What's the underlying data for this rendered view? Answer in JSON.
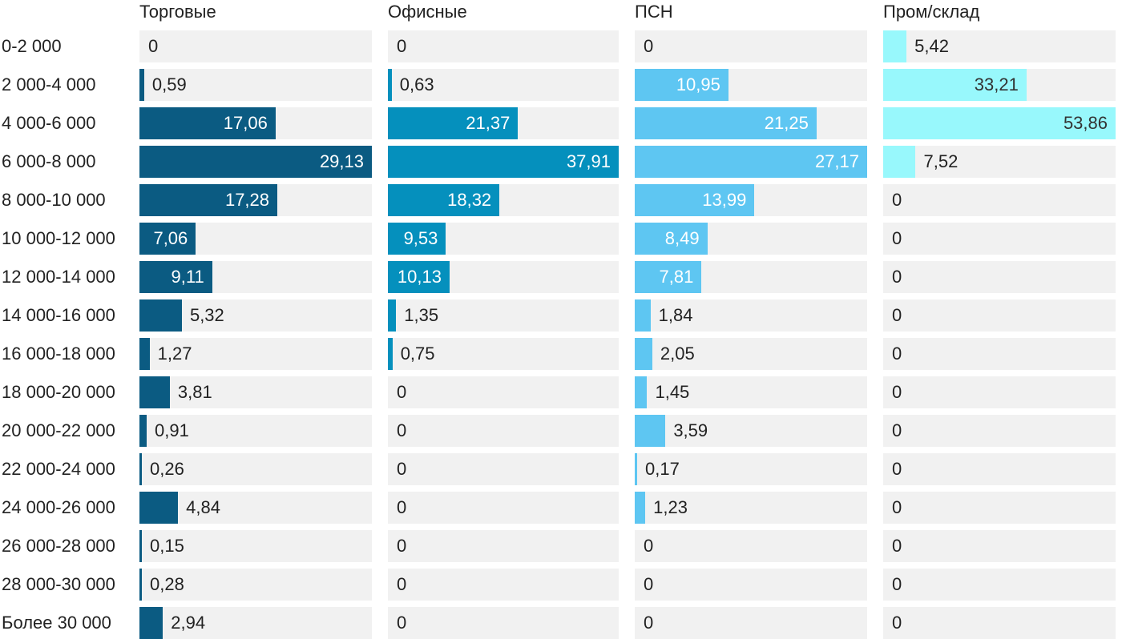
{
  "chart_data": {
    "type": "bar",
    "orientation": "horizontal",
    "layout": "small-multiples",
    "categories": [
      "0-2 000",
      "2 000-4 000",
      "4 000-6 000",
      "6 000-8 000",
      "8 000-10 000",
      "10 000-12 000",
      "12 000-14 000",
      "14 000-16 000",
      "16 000-18 000",
      "18 000-20 000",
      "20 000-22 000",
      "22 000-24 000",
      "24 000-26 000",
      "26 000-28 000",
      "28 000-30 000",
      "Более 30 000"
    ],
    "series": [
      {
        "name": "Торговые",
        "color": "#0b5b82",
        "values": [
          0,
          0.59,
          17.06,
          29.13,
          17.28,
          7.06,
          9.11,
          5.32,
          1.27,
          3.81,
          0.91,
          0.26,
          4.84,
          0.15,
          0.28,
          2.94
        ],
        "labels": [
          "0",
          "0,59",
          "17,06",
          "29,13",
          "17,28",
          "7,06",
          "9,11",
          "5,32",
          "1,27",
          "3,81",
          "0,91",
          "0,26",
          "4,84",
          "0,15",
          "0,28",
          "2,94"
        ]
      },
      {
        "name": "Офисные",
        "color": "#0590bd",
        "values": [
          0,
          0.63,
          21.37,
          37.91,
          18.32,
          9.53,
          10.13,
          1.35,
          0.75,
          0,
          0,
          0,
          0,
          0,
          0,
          0
        ],
        "labels": [
          "0",
          "0,63",
          "21,37",
          "37,91",
          "18,32",
          "9,53",
          "10,13",
          "1,35",
          "0,75",
          "0",
          "0",
          "0",
          "0",
          "0",
          "0",
          "0"
        ]
      },
      {
        "name": "ПСН",
        "color": "#5ec6f2",
        "values": [
          0,
          10.95,
          21.25,
          27.17,
          13.99,
          8.49,
          7.81,
          1.84,
          2.05,
          1.45,
          3.59,
          0.17,
          1.23,
          0,
          0,
          0
        ],
        "labels": [
          "0",
          "10,95",
          "21,25",
          "27,17",
          "13,99",
          "8,49",
          "7,81",
          "1,84",
          "2,05",
          "1,45",
          "3,59",
          "0,17",
          "1,23",
          "0",
          "0",
          "0"
        ]
      },
      {
        "name": "Пром/склад",
        "color": "#98f8fc",
        "values": [
          5.42,
          33.21,
          53.86,
          7.52,
          0,
          0,
          0,
          0,
          0,
          0,
          0,
          0,
          0,
          0,
          0,
          0
        ],
        "labels": [
          "5,42",
          "33,21",
          "53,86",
          "7,52",
          "0",
          "0",
          "0",
          "0",
          "0",
          "0",
          "0",
          "0",
          "0",
          "0",
          "0",
          "0"
        ]
      }
    ],
    "label_color_inside": "#ffffff",
    "label_color_inside_light": "#333333",
    "label_color_outside": "#222222",
    "track_color": "#f1f1f1",
    "grid": false,
    "legend": "none"
  }
}
